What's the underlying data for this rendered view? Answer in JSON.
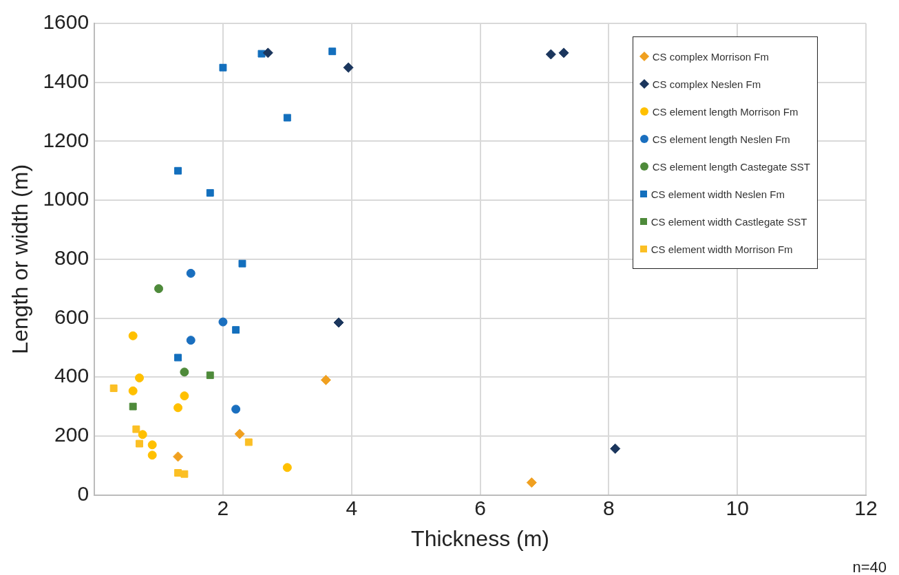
{
  "chart_data": {
    "type": "scatter",
    "xlabel": "Thickness (m)",
    "ylabel": "Length or width (m)",
    "annotations": [
      "n=40"
    ],
    "xlim": [
      0,
      12
    ],
    "xticks": [
      2,
      4,
      6,
      8,
      10,
      12
    ],
    "ylim": [
      0,
      1600
    ],
    "yticks": [
      0,
      200,
      400,
      600,
      800,
      1000,
      1200,
      1400,
      1600
    ],
    "grid": true,
    "legend": "top right",
    "series": [
      {
        "name": "CS complex Morrison Fm",
        "color": "#f0a020",
        "marker": "diamond",
        "x": [
          1.3,
          2.26,
          3.6,
          6.8
        ],
        "values": [
          130,
          207,
          390,
          42
        ]
      },
      {
        "name": "CS complex Neslen Fm",
        "color": "#1b365d",
        "marker": "diamond",
        "x": [
          2.7,
          3.95,
          3.8,
          7.1,
          7.3,
          8.1
        ],
        "values": [
          1500,
          1450,
          585,
          1495,
          1500,
          157
        ]
      },
      {
        "name": "CS element length Morrison Fm",
        "color": "#ffc000",
        "marker": "circle",
        "x": [
          0.6,
          0.7,
          0.6,
          0.75,
          0.9,
          0.9,
          1.3,
          1.4,
          3.0
        ],
        "values": [
          540,
          397,
          353,
          205,
          170,
          135,
          296,
          336,
          93
        ]
      },
      {
        "name": "CS element length Neslen Fm",
        "color": "#1a6fbf",
        "marker": "circle",
        "x": [
          1.5,
          2.0,
          1.5,
          2.2
        ],
        "values": [
          752,
          587,
          525,
          291
        ]
      },
      {
        "name": "CS element length Castegate SST",
        "color": "#4e8a3a",
        "marker": "circle",
        "x": [
          1.0,
          1.4
        ],
        "values": [
          700,
          417
        ]
      },
      {
        "name": "CS element width Neslen Fm",
        "color": "#136fbd",
        "marker": "square",
        "x": [
          1.3,
          1.8,
          2.0,
          2.6,
          3.7,
          3.0,
          2.3,
          2.2,
          1.3
        ],
        "values": [
          1100,
          1025,
          1450,
          1497,
          1505,
          1280,
          785,
          560,
          466
        ]
      },
      {
        "name": "CS element width Castlegate SST",
        "color": "#4e8a3a",
        "marker": "square",
        "x": [
          0.6,
          1.8
        ],
        "values": [
          300,
          406
        ]
      },
      {
        "name": "CS element width Morrison Fm",
        "color": "#fbbf24",
        "marker": "square",
        "x": [
          0.3,
          0.65,
          0.7,
          1.3,
          1.4,
          2.4
        ],
        "values": [
          362,
          223,
          174,
          75,
          71,
          179
        ]
      }
    ]
  }
}
